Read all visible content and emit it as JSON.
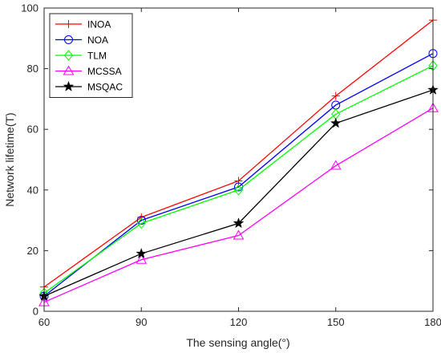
{
  "chart_data": {
    "type": "line",
    "title": "",
    "xlabel": "The sensing angle(°)",
    "ylabel": "Network lifetime(T)",
    "x": [
      60,
      90,
      120,
      150,
      180
    ],
    "xlim": [
      60,
      180
    ],
    "ylim": [
      0,
      100
    ],
    "xticks": [
      60,
      90,
      120,
      150,
      180
    ],
    "yticks": [
      0,
      20,
      40,
      60,
      80,
      100
    ],
    "grid": false,
    "legend_position": "top-left",
    "series": [
      {
        "name": "INOA",
        "values": [
          8,
          31,
          43,
          71,
          96
        ],
        "color": "#ff0000",
        "marker": "plus"
      },
      {
        "name": "NOA",
        "values": [
          5,
          30,
          41,
          68,
          85
        ],
        "color": "#0000ff",
        "marker": "circle"
      },
      {
        "name": "TLM",
        "values": [
          6,
          29,
          40,
          65,
          81
        ],
        "color": "#00ff00",
        "marker": "diamond"
      },
      {
        "name": "MCSSA",
        "values": [
          3,
          17,
          25,
          48,
          67
        ],
        "color": "#ff00ff",
        "marker": "triangle"
      },
      {
        "name": "MSQAC",
        "values": [
          5,
          19,
          29,
          62,
          73
        ],
        "color": "#000000",
        "marker": "star"
      }
    ]
  }
}
